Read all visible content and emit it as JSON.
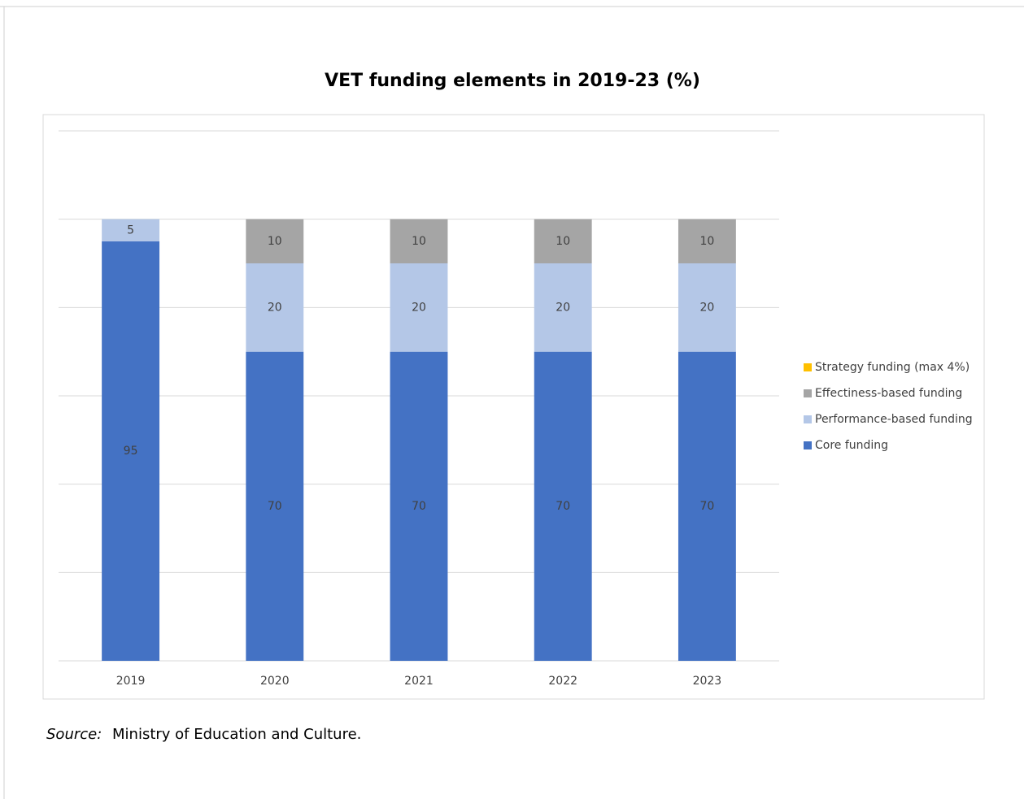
{
  "chart_data": {
    "type": "stacked_bar",
    "title": "VET funding elements in 2019-23 (%)",
    "categories": [
      "2019",
      "2020",
      "2021",
      "2022",
      "2023"
    ],
    "series": [
      {
        "name": "Core funding",
        "color": "#4472c4",
        "values": [
          95,
          70,
          70,
          70,
          70
        ]
      },
      {
        "name": "Performance-based funding",
        "color": "#b4c7e7",
        "values": [
          5,
          20,
          20,
          20,
          20
        ]
      },
      {
        "name": "Effectiness-based funding",
        "color": "#a5a5a5",
        "values": [
          null,
          10,
          10,
          10,
          10
        ]
      },
      {
        "name": "Strategy funding (max 4%)",
        "color": "#ffc000",
        "values": [
          null,
          null,
          null,
          null,
          null
        ]
      }
    ],
    "ylim": [
      0,
      120
    ],
    "yticks": [
      0,
      20,
      40,
      60,
      80,
      100,
      120
    ],
    "grid": true,
    "legend": "right",
    "source_label": "Source:",
    "source": "Ministry of Education and Culture."
  }
}
